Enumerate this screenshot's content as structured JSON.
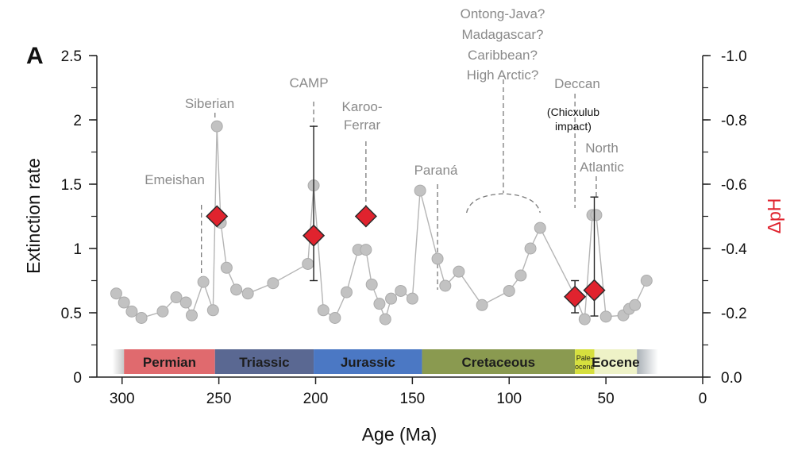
{
  "chart_data": {
    "type": "scatter",
    "panel_label": "A",
    "xlabel": "Age (Ma)",
    "ylabel": "Extinction rate",
    "y2label": "ΔpH",
    "xlim": [
      305,
      0
    ],
    "ylim": [
      0,
      2.5
    ],
    "x_ticks": [
      "300",
      "250",
      "200",
      "150",
      "100",
      "50",
      "0"
    ],
    "x_tick_values": [
      300,
      250,
      200,
      150,
      100,
      50,
      0
    ],
    "y_ticks": [
      "0",
      "0.5",
      "1",
      "1.5",
      "2",
      "2.5"
    ],
    "y_tick_values": [
      0,
      0.5,
      1,
      1.5,
      2,
      2.5
    ],
    "y2_ticks": [
      "0.0",
      "-0.2",
      "-0.4",
      "-0.6",
      "-0.8",
      "-1.0"
    ],
    "y2_tick_values": [
      0,
      -0.2,
      -0.4,
      -0.6,
      -0.8,
      -1.0
    ],
    "series": [
      {
        "name": "Extinction rate",
        "color": "#a0a0a0",
        "x": [
          303,
          299,
          295,
          290,
          279,
          272,
          267,
          264,
          258,
          253,
          251,
          249,
          246,
          241,
          235,
          222,
          204,
          201,
          196,
          190,
          184,
          178,
          174,
          171,
          167,
          164,
          161,
          156,
          150,
          146,
          137,
          133,
          126,
          114,
          100,
          94,
          89,
          84,
          66,
          61,
          57,
          55,
          50,
          41,
          38,
          35,
          29
        ],
        "y": [
          0.65,
          0.58,
          0.51,
          0.46,
          0.51,
          0.62,
          0.58,
          0.48,
          0.74,
          0.52,
          1.95,
          1.2,
          0.85,
          0.68,
          0.65,
          0.73,
          0.88,
          1.49,
          0.52,
          0.46,
          0.66,
          0.99,
          0.99,
          0.72,
          0.57,
          0.45,
          0.61,
          0.67,
          0.61,
          1.45,
          0.92,
          0.71,
          0.82,
          0.56,
          0.67,
          0.79,
          1.0,
          1.16,
          0.63,
          0.45,
          1.26,
          1.26,
          0.47,
          0.48,
          0.53,
          0.56,
          0.75
        ]
      },
      {
        "name": "ΔpH",
        "color": "#e0232e",
        "x": [
          251,
          201,
          174,
          66,
          56
        ],
        "y": [
          -0.5,
          -0.44,
          -0.5,
          -0.25,
          -0.27
        ],
        "err_low": [
          null,
          -0.3,
          null,
          -0.2,
          -0.19
        ],
        "err_high": [
          null,
          -0.78,
          null,
          -0.3,
          -0.56
        ]
      }
    ],
    "periods": [
      {
        "name": "Permian",
        "start": 299,
        "end": 252,
        "color": "#e06a6e"
      },
      {
        "name": "Triassic",
        "start": 252,
        "end": 201,
        "color": "#5a6892"
      },
      {
        "name": "Jurassic",
        "start": 201,
        "end": 145,
        "color": "#4b78c4"
      },
      {
        "name": "Cretaceous",
        "start": 145,
        "end": 66,
        "color": "#8a9a50"
      },
      {
        "name": "Pale-ocene",
        "start": 66,
        "end": 56,
        "color": "#d6df3e"
      },
      {
        "name": "Eocene",
        "start": 56,
        "end": 34,
        "color": "#eef2c7"
      }
    ],
    "annotations": [
      {
        "text": "Emeishan",
        "color": "#8a8a8a"
      },
      {
        "text": "Siberian",
        "color": "#8a8a8a"
      },
      {
        "text": "CAMP",
        "color": "#8a8a8a"
      },
      {
        "text": "Karoo-",
        "color": "#8a8a8a"
      },
      {
        "text": "Ferrar",
        "color": "#8a8a8a"
      },
      {
        "text": "Paraná",
        "color": "#8a8a8a"
      },
      {
        "text": "Ontong-Java?",
        "color": "#8a8a8a"
      },
      {
        "text": "Madagascar?",
        "color": "#8a8a8a"
      },
      {
        "text": "Caribbean?",
        "color": "#8a8a8a"
      },
      {
        "text": "High Arctic?",
        "color": "#8a8a8a"
      },
      {
        "text": "Deccan",
        "color": "#8a8a8a"
      },
      {
        "text": "(Chicxulub",
        "color": "#111111"
      },
      {
        "text": "impact)",
        "color": "#111111"
      },
      {
        "text": "North",
        "color": "#8a8a8a"
      },
      {
        "text": "Atlantic",
        "color": "#8a8a8a"
      }
    ]
  }
}
